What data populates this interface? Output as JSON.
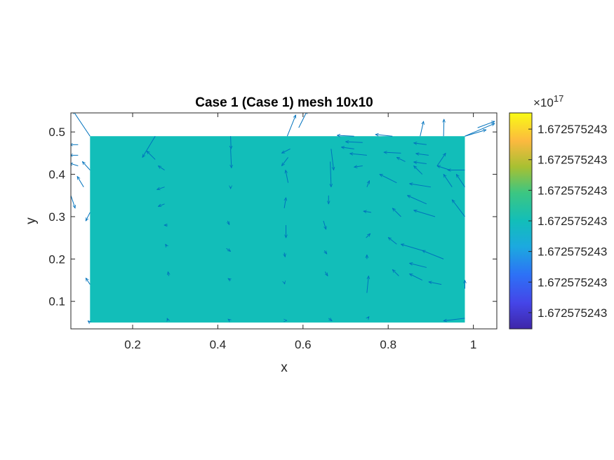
{
  "chart_data": {
    "type": "heatmap",
    "title": "Case 1 (Case 1) mesh 10x10",
    "xlabel": "x",
    "ylabel": "y",
    "xlim": [
      0.055,
      1.055
    ],
    "ylim": [
      0.035,
      0.545
    ],
    "xticks": [
      0.2,
      0.4,
      0.6,
      0.8,
      1
    ],
    "xtick_labels": [
      "0.2",
      "0.4",
      "0.6",
      "0.8",
      "1"
    ],
    "yticks": [
      0.1,
      0.2,
      0.3,
      0.4,
      0.5
    ],
    "ytick_labels": [
      "0.1",
      "0.2",
      "0.3",
      "0.4",
      "0.5"
    ],
    "field_region": {
      "x": [
        0.1,
        0.98
      ],
      "y": [
        0.05,
        0.49
      ]
    },
    "field_color": "#12BEB9",
    "colorbar": {
      "colormap": "parula",
      "exponent_label": "×10",
      "exponent": "17",
      "tick_labels": [
        "1.672575243",
        "1.672575243",
        "1.672575243",
        "1.672575243",
        "1.672575243",
        "1.672575243",
        "1.672575243"
      ]
    },
    "quiver": {
      "color": "#0072BD",
      "vectors": [
        [
          0.055,
          0.35,
          0.01,
          -0.03
        ],
        [
          0.072,
          0.47,
          -0.02,
          0
        ],
        [
          0.072,
          0.445,
          -0.02,
          0
        ],
        [
          0.072,
          0.42,
          -0.02,
          0.006
        ],
        [
          0.085,
          0.37,
          -0.015,
          0.025
        ],
        [
          0.1,
          0.49,
          -0.04,
          0.06
        ],
        [
          0.1,
          0.41,
          -0.018,
          0.02
        ],
        [
          0.1,
          0.31,
          -0.01,
          -0.02
        ],
        [
          0.1,
          0.14,
          -0.01,
          0.015
        ],
        [
          0.1,
          0.05,
          -0.005,
          0.004
        ],
        [
          0.253,
          0.49,
          -0.03,
          -0.05
        ],
        [
          0.253,
          0.435,
          -0.02,
          0.02
        ],
        [
          0.275,
          0.41,
          -0.015,
          0.01
        ],
        [
          0.275,
          0.37,
          -0.018,
          -0.006
        ],
        [
          0.275,
          0.33,
          -0.015,
          -0.006
        ],
        [
          0.282,
          0.28,
          -0.008,
          0
        ],
        [
          0.28,
          0.23,
          -0.003,
          0.005
        ],
        [
          0.285,
          0.16,
          -0.002,
          0.01
        ],
        [
          0.283,
          0.055,
          -0.002,
          0.005
        ],
        [
          0.43,
          0.49,
          0.001,
          -0.03
        ],
        [
          0.43,
          0.46,
          0.002,
          -0.045
        ],
        [
          0.43,
          0.37,
          0,
          -0.004
        ],
        [
          0.423,
          0.29,
          0.004,
          -0.009
        ],
        [
          0.42,
          0.225,
          0.01,
          -0.007
        ],
        [
          0.43,
          0.15,
          -0.006,
          0.004
        ],
        [
          0.428,
          0.055,
          -0.004,
          0.003
        ],
        [
          0.563,
          0.49,
          0.02,
          0.05
        ],
        [
          0.59,
          0.51,
          0.02,
          0.04
        ],
        [
          0.57,
          0.46,
          -0.02,
          -0.01
        ],
        [
          0.565,
          0.44,
          -0.015,
          -0.02
        ],
        [
          0.565,
          0.38,
          -0.006,
          0.03
        ],
        [
          0.556,
          0.32,
          0.004,
          0.025
        ],
        [
          0.56,
          0.28,
          0,
          -0.03
        ],
        [
          0.556,
          0.215,
          0.002,
          -0.01
        ],
        [
          0.556,
          0.145,
          0.001,
          -0.004
        ],
        [
          0.56,
          0.055,
          0.002,
          0
        ],
        [
          0.666,
          0.46,
          0.006,
          -0.05
        ],
        [
          0.664,
          0.43,
          0.002,
          -0.06
        ],
        [
          0.66,
          0.35,
          0,
          -0.02
        ],
        [
          0.648,
          0.29,
          0.006,
          -0.02
        ],
        [
          0.65,
          0.22,
          0.006,
          -0.008
        ],
        [
          0.652,
          0.17,
          0.006,
          -0.01
        ],
        [
          0.66,
          0.06,
          0.008,
          -0.006
        ],
        [
          0.72,
          0.49,
          -0.04,
          0.002
        ],
        [
          0.74,
          0.475,
          -0.04,
          0.002
        ],
        [
          0.72,
          0.46,
          -0.03,
          0.004
        ],
        [
          0.75,
          0.445,
          -0.04,
          0.004
        ],
        [
          0.74,
          0.42,
          -0.02,
          -0.003
        ],
        [
          0.75,
          0.37,
          0.006,
          0.015
        ],
        [
          0.76,
          0.31,
          -0.018,
          0.003
        ],
        [
          0.748,
          0.25,
          0.01,
          0.01
        ],
        [
          0.75,
          0.2,
          0,
          0.01
        ],
        [
          0.75,
          0.12,
          0.004,
          0.04
        ],
        [
          0.752,
          0.06,
          0.003,
          0.004
        ],
        [
          0.81,
          0.49,
          -0.04,
          0.004
        ],
        [
          0.83,
          0.45,
          -0.04,
          0.002
        ],
        [
          0.84,
          0.43,
          -0.02,
          0.01
        ],
        [
          0.82,
          0.38,
          -0.04,
          0.02
        ],
        [
          0.83,
          0.3,
          -0.02,
          0.02
        ],
        [
          0.82,
          0.235,
          -0.02,
          0.016
        ],
        [
          0.825,
          0.16,
          -0.015,
          0.015
        ],
        [
          0.875,
          0.49,
          0.008,
          0.035
        ],
        [
          0.89,
          0.47,
          -0.03,
          0.004
        ],
        [
          0.895,
          0.445,
          -0.03,
          0.004
        ],
        [
          0.89,
          0.425,
          -0.03,
          0.004
        ],
        [
          0.88,
          0.4,
          -0.02,
          0.02
        ],
        [
          0.9,
          0.37,
          -0.05,
          0.008
        ],
        [
          0.89,
          0.33,
          -0.045,
          0.02
        ],
        [
          0.91,
          0.3,
          -0.05,
          0.015
        ],
        [
          0.88,
          0.22,
          -0.05,
          0.015
        ],
        [
          0.93,
          0.2,
          -0.05,
          0.02
        ],
        [
          0.89,
          0.18,
          -0.04,
          0.01
        ],
        [
          0.88,
          0.15,
          -0.03,
          0.015
        ],
        [
          0.925,
          0.14,
          -0.03,
          0.006
        ],
        [
          0.93,
          0.49,
          0.001,
          0.04
        ],
        [
          0.915,
          0.42,
          0.02,
          0.03
        ],
        [
          0.945,
          0.41,
          -0.03,
          0.01
        ],
        [
          0.98,
          0.41,
          -0.04,
          0
        ],
        [
          0.95,
          0.37,
          -0.02,
          0.03
        ],
        [
          0.98,
          0.37,
          -0.02,
          0.03
        ],
        [
          0.98,
          0.3,
          -0.03,
          0.04
        ],
        [
          0.98,
          0.49,
          0.07,
          0.03
        ],
        [
          0.98,
          0.49,
          0.05,
          0.015
        ],
        [
          1.01,
          0.51,
          0.04,
          0.015
        ],
        [
          0.98,
          0.13,
          0,
          0.02
        ],
        [
          0.98,
          0.06,
          -0.05,
          -0.006
        ]
      ]
    }
  }
}
